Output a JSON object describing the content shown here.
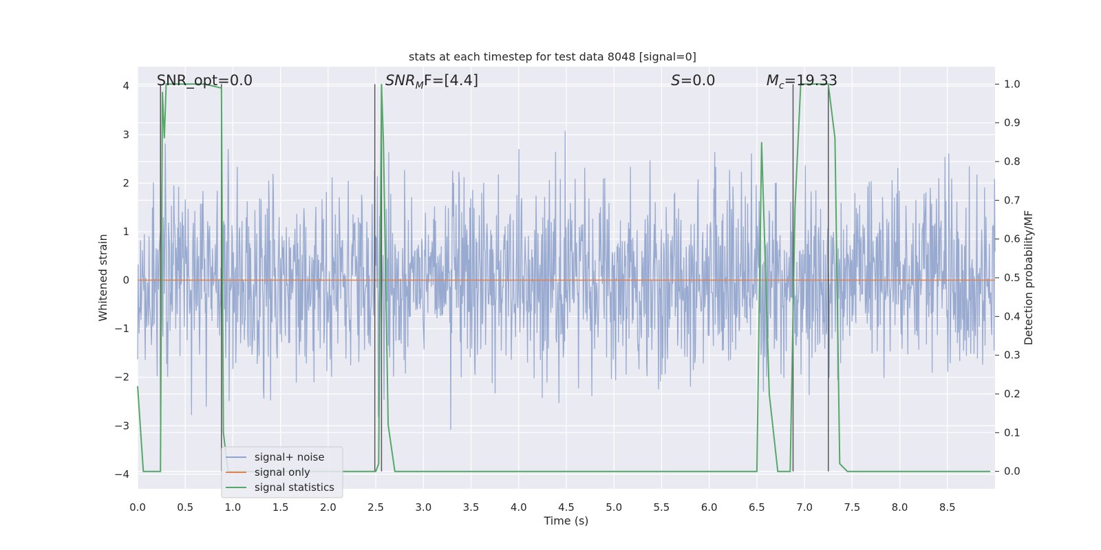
{
  "chart_data": {
    "type": "line",
    "title": "stats at each timestep for test data 8048 [signal=0]",
    "xlabel": "Time (s)",
    "ylabel": "Whitened strain",
    "y2label": "Detection probability/MF",
    "xlim": [
      0,
      9
    ],
    "ylim": [
      -4.3,
      4.4
    ],
    "y2lim": [
      -0.045,
      1.045
    ],
    "x_ticks": [
      0.0,
      0.5,
      1.0,
      1.5,
      2.0,
      2.5,
      3.0,
      3.5,
      4.0,
      4.5,
      5.0,
      5.5,
      6.0,
      6.5,
      7.0,
      7.5,
      8.0,
      8.5
    ],
    "x_tick_labels": [
      "0.0",
      "0.5",
      "1.0",
      "1.5",
      "2.0",
      "2.5",
      "3.0",
      "3.5",
      "4.0",
      "4.5",
      "5.0",
      "5.5",
      "6.0",
      "6.5",
      "7.0",
      "7.5",
      "8.0",
      "8.5"
    ],
    "y_ticks": [
      4,
      3,
      2,
      1,
      0,
      -1,
      -2,
      -3,
      -4
    ],
    "y_tick_labels": [
      "4",
      "3",
      "2",
      "1",
      "0",
      "−1",
      "−2",
      "−3",
      "−4"
    ],
    "y2_ticks": [
      1.0,
      0.9,
      0.8,
      0.7,
      0.6,
      0.5,
      0.4,
      0.3,
      0.2,
      0.1,
      0.0
    ],
    "y2_tick_labels": [
      "1.0",
      "0.9",
      "0.8",
      "0.7",
      "0.6",
      "0.5",
      "0.4",
      "0.3",
      "0.2",
      "0.1",
      "0.0"
    ],
    "grid": true,
    "legend_position": "lower-left",
    "series": [
      {
        "name": "signal+ noise",
        "color": "#8fa3cc",
        "description": "whitened noise trace, approx Gaussian, mostly within +/-3",
        "n_samples": 1800,
        "sigma": 1.0,
        "seed": 8048
      },
      {
        "name": "signal only",
        "color": "#dd8452",
        "x": [
          0,
          9
        ],
        "y": [
          0,
          0
        ]
      },
      {
        "name": "signal statistics",
        "color": "#55a868",
        "axis": "right",
        "x": [
          0.0,
          0.06,
          0.1,
          0.15,
          0.2,
          0.24,
          0.26,
          0.28,
          0.3,
          0.35,
          0.5,
          0.7,
          0.88,
          0.9,
          0.95,
          1.5,
          2.0,
          2.5,
          2.53,
          2.56,
          2.58,
          2.63,
          2.7,
          3.0,
          4.0,
          5.0,
          6.0,
          6.4,
          6.5,
          6.55,
          6.63,
          6.72,
          6.85,
          6.9,
          6.96,
          7.05,
          7.15,
          7.22,
          7.25,
          7.32,
          7.37,
          7.45,
          8.0,
          8.5,
          8.95
        ],
        "y": [
          0.22,
          0.0,
          0.0,
          0.0,
          0.0,
          0.0,
          0.98,
          0.86,
          1.0,
          1.0,
          1.0,
          1.0,
          0.99,
          0.1,
          0.0,
          0.0,
          0.0,
          0.0,
          0.02,
          1.0,
          0.85,
          0.12,
          0.0,
          0.0,
          0.0,
          0.0,
          0.0,
          0.0,
          0.0,
          0.85,
          0.2,
          0.0,
          0.0,
          0.68,
          1.0,
          1.0,
          1.0,
          1.0,
          1.0,
          0.86,
          0.02,
          0.0,
          0.0,
          0.0,
          0.0
        ]
      }
    ],
    "vlines": [
      0.24,
      0.88,
      2.49,
      2.56,
      6.88,
      7.25
    ],
    "annotations": [
      {
        "text": "SNR_opt=0.0",
        "x": 0.2
      },
      {
        "text": "SNR",
        "sub": "M",
        "tail": "F=[4.4]",
        "x": 2.6,
        "italic": true
      },
      {
        "text": "S",
        "tail": "=0.0",
        "x": 5.6,
        "italic": true
      },
      {
        "text": "M",
        "sub": "c",
        "tail": "=19.33",
        "x": 6.6,
        "italic": true
      }
    ]
  },
  "colors": {
    "plot_bg": "#eaeaf2",
    "grid": "#ffffff",
    "text": "#262626",
    "vline": "#555555"
  }
}
